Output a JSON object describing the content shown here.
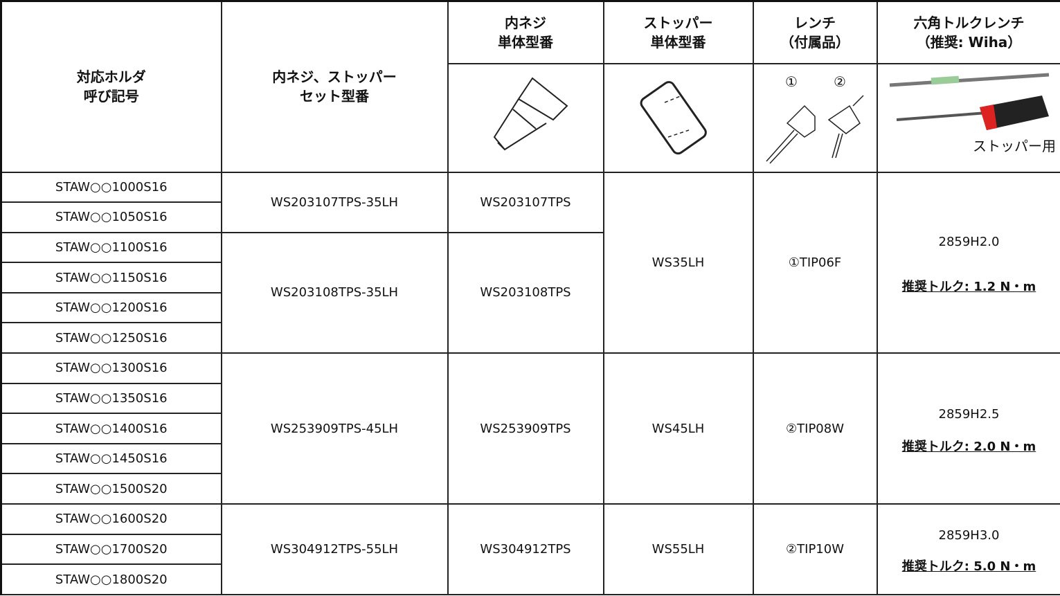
{
  "header": {
    "holder": [
      "対応ホルダ",
      "呼び記号"
    ],
    "set_model": [
      "内ネジ、ストッパー",
      "セット型番"
    ],
    "inner_screw": [
      "内ネジ",
      "単体型番"
    ],
    "stopper": [
      "ストッパー",
      "単体型番"
    ],
    "wrench": [
      "レンチ",
      "（付属品）"
    ],
    "torque_wrench": [
      "六角トルクレンチ",
      "（推奨: Wiha）"
    ],
    "wrench_image_labels": [
      "①",
      "②"
    ],
    "torque_image_label": "ストッパー用"
  },
  "table": {
    "holders": [
      "STAW○○1000S16",
      "STAW○○1050S16",
      "STAW○○1100S16",
      "STAW○○1150S16",
      "STAW○○1200S16",
      "STAW○○1250S16",
      "STAW○○1300S16",
      "STAW○○1350S16",
      "STAW○○1400S16",
      "STAW○○1450S16",
      "STAW○○1500S20",
      "STAW○○1600S20",
      "STAW○○1700S20",
      "STAW○○1800S20"
    ],
    "set_models": [
      "WS203107TPS-35LH",
      "WS203108TPS-35LH",
      "WS253909TPS-45LH",
      "WS304912TPS-55LH"
    ],
    "inner_screws": [
      "WS203107TPS",
      "WS203108TPS",
      "WS253909TPS",
      "WS304912TPS"
    ],
    "stoppers": [
      "WS35LH",
      "WS45LH",
      "WS55LH"
    ],
    "wrenches": [
      "①TIP06F",
      "②TIP08W",
      "②TIP10W"
    ],
    "torque_wrenches": [
      {
        "model": "2859H2.0",
        "torque": "推奨トルク: 1.2 N・m"
      },
      {
        "model": "2859H2.5",
        "torque": "推奨トルク: 2.0 N・m"
      },
      {
        "model": "2859H3.0",
        "torque": "推奨トルク: 5.0 N・m"
      }
    ]
  }
}
